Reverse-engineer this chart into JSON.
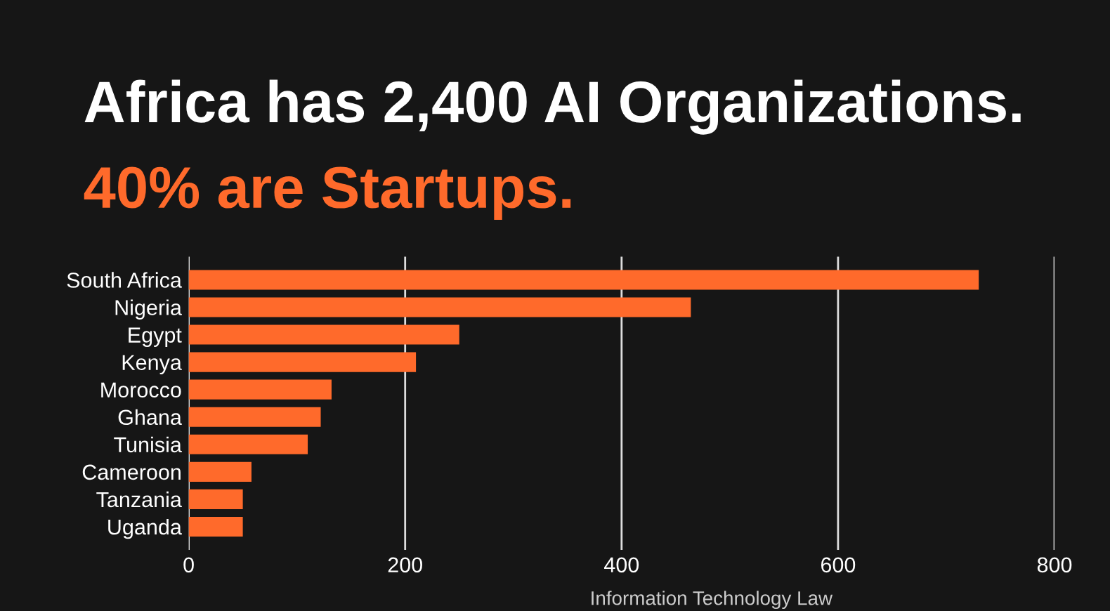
{
  "chart_data": {
    "type": "bar",
    "orientation": "horizontal",
    "title": "Africa has 2,400 AI Organizations.",
    "subtitle": "40% are Startups.",
    "categories": [
      "South Africa",
      "Nigeria",
      "Egypt",
      "Kenya",
      "Morocco",
      "Ghana",
      "Tunisia",
      "Cameroon",
      "Tanzania",
      "Uganda"
    ],
    "values": [
      730,
      464,
      250,
      210,
      132,
      122,
      110,
      58,
      50,
      50
    ],
    "color": "#ff6a2b",
    "xlim": [
      0,
      800
    ],
    "xticks": [
      0,
      200,
      400,
      600,
      800
    ],
    "grid": "x",
    "annotations": [
      "Information Technology Law"
    ]
  }
}
